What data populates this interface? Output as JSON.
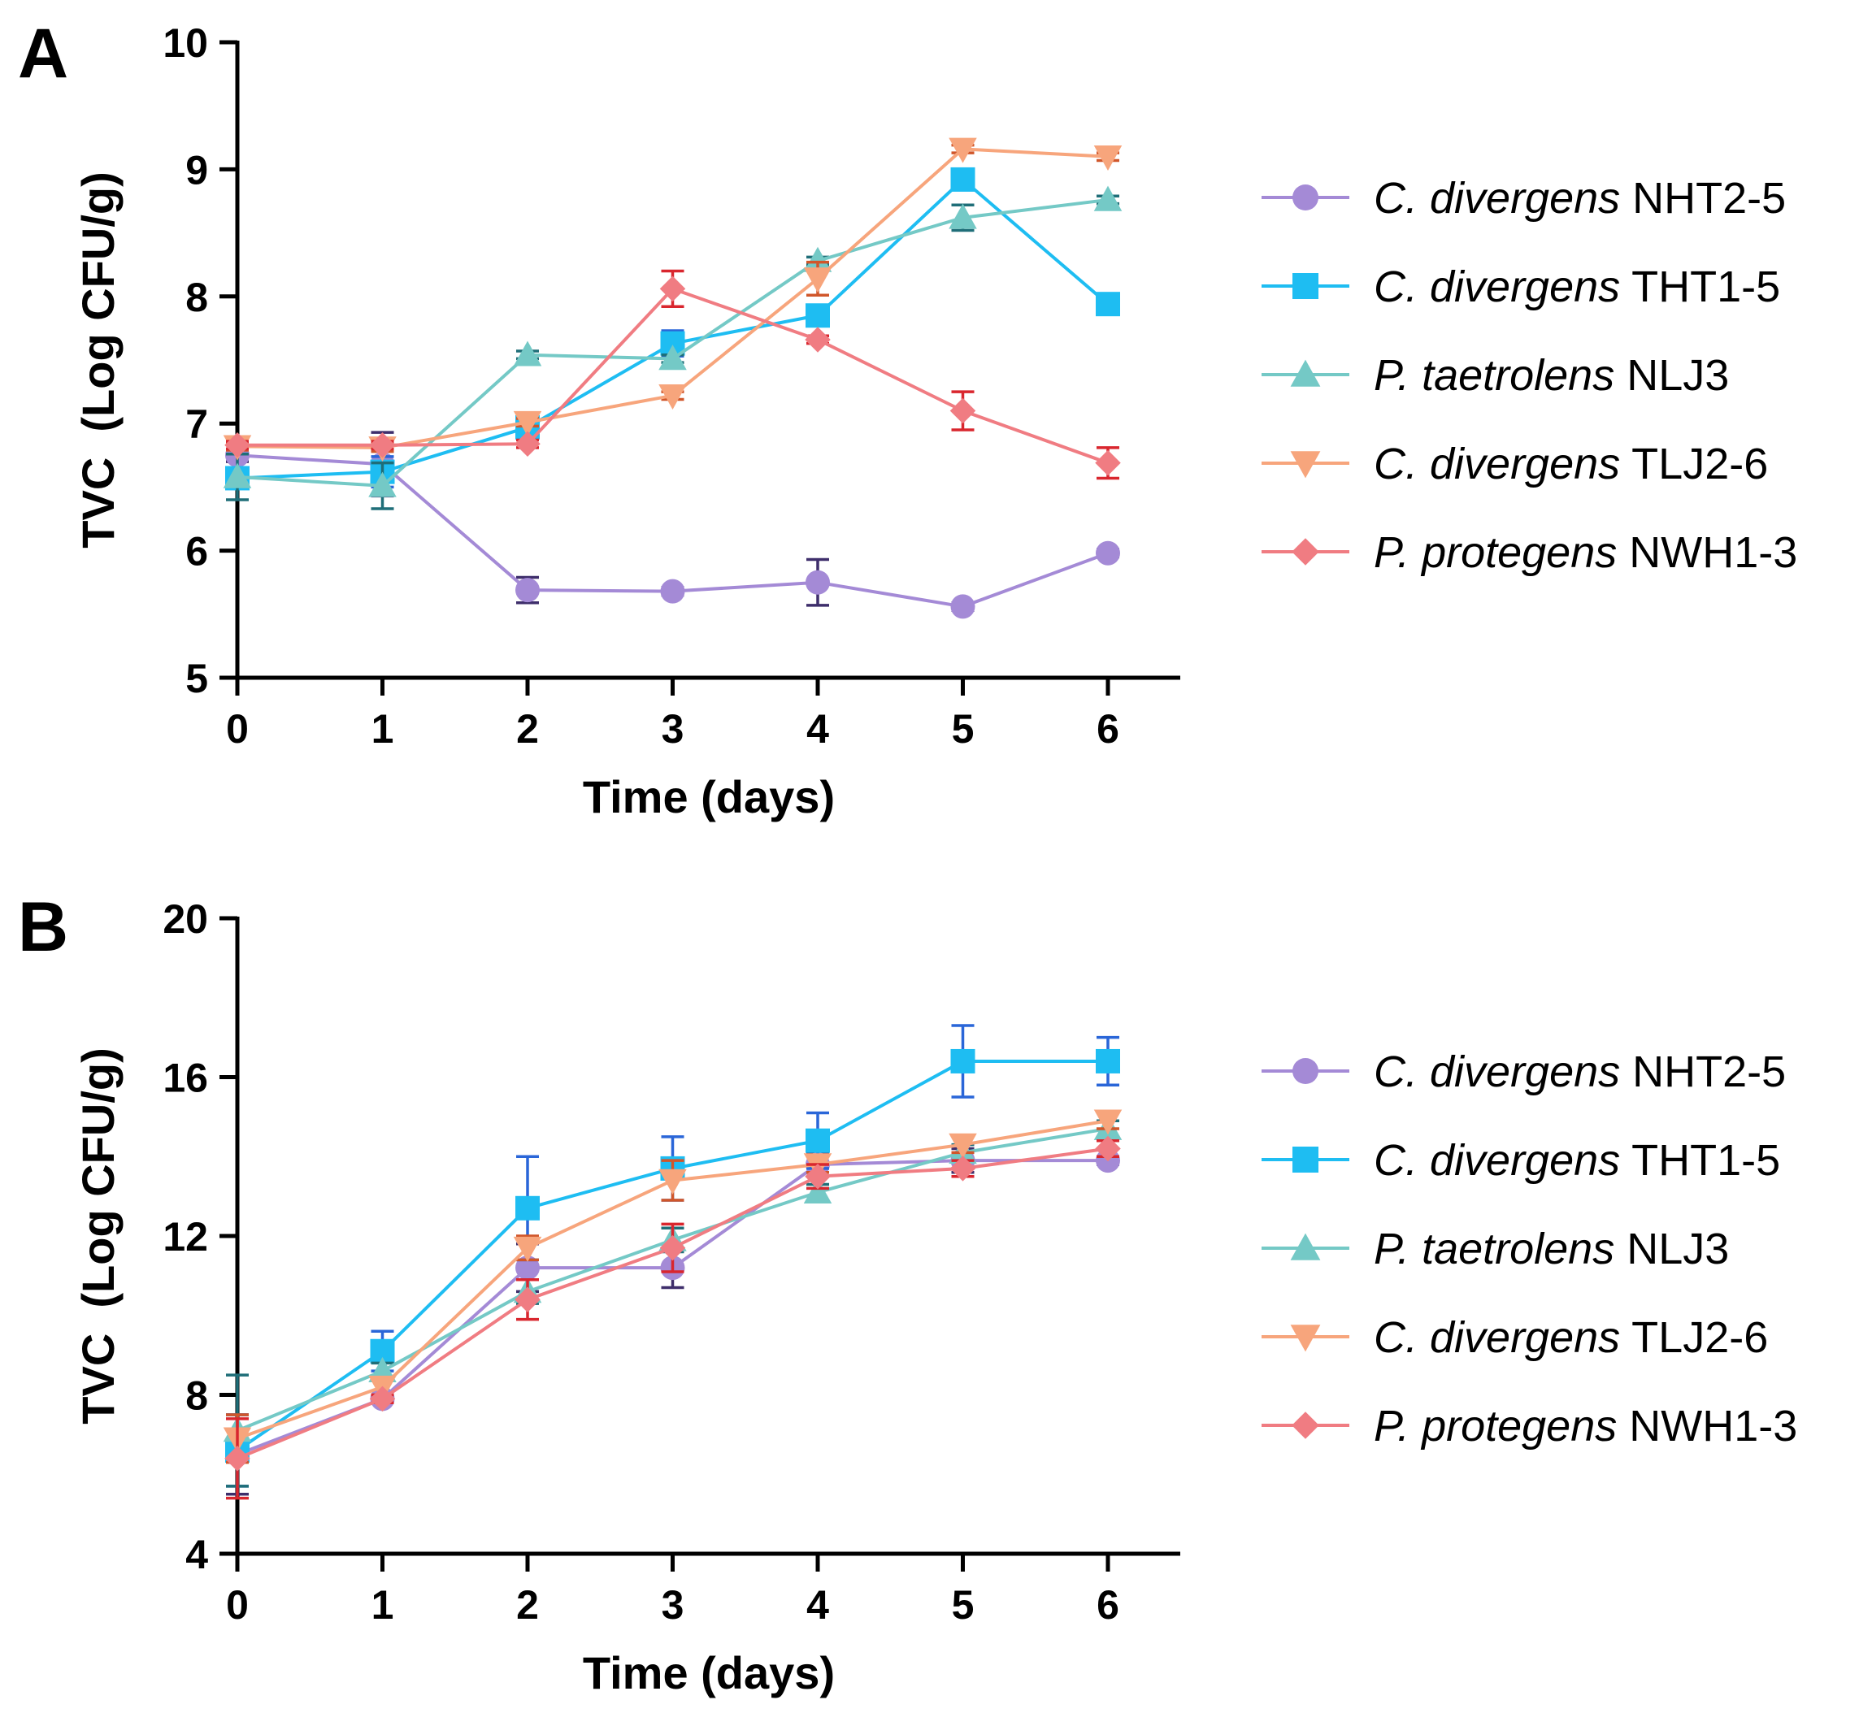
{
  "chart_data": [
    {
      "panel": "A",
      "type": "line",
      "xlabel": "Time (days)",
      "ylabel": "TVC  (Log CFU/g)",
      "x": [
        0,
        1,
        2,
        3,
        4,
        5,
        6
      ],
      "xlim": [
        0,
        6.5
      ],
      "ylim": [
        5,
        10
      ],
      "yticks": [
        5,
        6,
        7,
        8,
        9,
        10
      ],
      "xticks": [
        0,
        1,
        2,
        3,
        4,
        5,
        6
      ],
      "grid": false,
      "legend_position": "right",
      "series": [
        {
          "name_italic": "C. divergens",
          "name_rest": " NHT2-5",
          "marker": "circle",
          "color": "#A48AD6",
          "err_color": "#3E2E6B",
          "values": [
            6.75,
            6.68,
            5.69,
            5.68,
            5.75,
            5.56,
            5.98
          ],
          "errors": [
            0.05,
            0.25,
            0.1,
            0.03,
            0.18,
            0.03,
            0.03
          ]
        },
        {
          "name_italic": "C. divergens",
          "name_rest": " THT1-5",
          "marker": "square",
          "color": "#1EBDF2",
          "err_color": "#2A66D8",
          "values": [
            6.57,
            6.62,
            6.97,
            7.63,
            7.85,
            8.92,
            7.94
          ],
          "errors": [
            0.04,
            0.12,
            0.05,
            0.1,
            0.03,
            0.05,
            0.03
          ]
        },
        {
          "name_italic": "P. taetrolens",
          "name_rest": " NLJ3",
          "marker": "triangle-up",
          "color": "#74C9C6",
          "err_color": "#1F6E78",
          "values": [
            6.58,
            6.51,
            7.54,
            7.51,
            8.28,
            8.62,
            8.76
          ],
          "errors": [
            0.18,
            0.18,
            0.03,
            0.03,
            0.03,
            0.1,
            0.03
          ]
        },
        {
          "name_italic": "C. divergens",
          "name_rest": " TLJ2-6",
          "marker": "triangle-down",
          "color": "#F7A57C",
          "err_color": "#D0562A",
          "values": [
            6.82,
            6.81,
            7.01,
            7.22,
            8.14,
            9.16,
            9.1
          ],
          "errors": [
            0.03,
            0.03,
            0.03,
            0.03,
            0.13,
            0.03,
            0.03
          ]
        },
        {
          "name_italic": "P. protegens",
          "name_rest": " NWH1-3",
          "marker": "diamond",
          "color": "#F07C82",
          "err_color": "#D9262E",
          "values": [
            6.83,
            6.83,
            6.84,
            8.06,
            7.66,
            7.1,
            6.69
          ],
          "errors": [
            0.03,
            0.03,
            0.03,
            0.14,
            0.03,
            0.15,
            0.12
          ]
        }
      ]
    },
    {
      "panel": "B",
      "type": "line",
      "xlabel": "Time (days)",
      "ylabel": "TVC  (Log CFU/g)",
      "x": [
        0,
        1,
        2,
        3,
        4,
        5,
        6
      ],
      "xlim": [
        0,
        6.5
      ],
      "ylim": [
        4,
        20
      ],
      "yticks": [
        4,
        8,
        12,
        16,
        20
      ],
      "xticks": [
        0,
        1,
        2,
        3,
        4,
        5,
        6
      ],
      "grid": false,
      "legend_position": "right",
      "series": [
        {
          "name_italic": "C. divergens",
          "name_rest": " NHT2-5",
          "marker": "circle",
          "color": "#A48AD6",
          "err_color": "#3E2E6B",
          "values": [
            6.5,
            7.9,
            11.2,
            11.2,
            13.8,
            13.9,
            13.9
          ],
          "errors": [
            1.0,
            0.1,
            0.6,
            0.5,
            0.3,
            0.3,
            0.1
          ]
        },
        {
          "name_italic": "C. divergens",
          "name_rest": " THT1-5",
          "marker": "square",
          "color": "#1EBDF2",
          "err_color": "#2A66D8",
          "values": [
            6.6,
            9.1,
            12.7,
            13.7,
            14.4,
            16.4,
            16.4
          ],
          "errors": [
            0.9,
            0.5,
            1.3,
            0.8,
            0.7,
            0.9,
            0.6
          ]
        },
        {
          "name_italic": "P. taetrolens",
          "name_rest": " NLJ3",
          "marker": "triangle-up",
          "color": "#74C9C6",
          "err_color": "#1F6E78",
          "values": [
            7.1,
            8.6,
            10.6,
            11.9,
            13.1,
            14.1,
            14.7
          ],
          "errors": [
            1.4,
            0.2,
            0.3,
            0.3,
            0.2,
            0.2,
            0.2
          ]
        },
        {
          "name_italic": "C. divergens",
          "name_rest": " TLJ2-6",
          "marker": "triangle-down",
          "color": "#F7A57C",
          "err_color": "#D0562A",
          "values": [
            6.9,
            8.2,
            11.7,
            13.4,
            13.8,
            14.3,
            14.9
          ],
          "errors": [
            0.6,
            0.2,
            0.3,
            0.5,
            0.2,
            0.2,
            0.2
          ]
        },
        {
          "name_italic": "P. protegens",
          "name_rest": " NWH1-3",
          "marker": "diamond",
          "color": "#F07C82",
          "err_color": "#D9262E",
          "values": [
            6.4,
            7.9,
            10.4,
            11.7,
            13.5,
            13.7,
            14.2
          ],
          "errors": [
            1.0,
            0.1,
            0.5,
            0.6,
            0.3,
            0.2,
            0.2
          ]
        }
      ]
    }
  ]
}
